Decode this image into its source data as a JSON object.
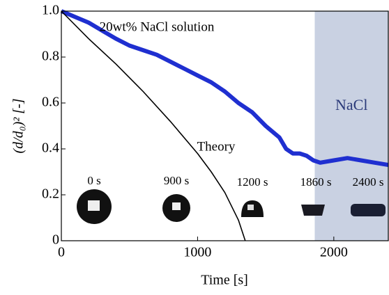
{
  "chart_data": {
    "type": "line",
    "xlabel": "Time [s]",
    "ylabel": "(d/d₀)² [-]",
    "xlim": [
      0,
      2400
    ],
    "ylim": [
      0,
      1
    ],
    "xticks": [
      0,
      1000,
      2000
    ],
    "yticks": [
      0,
      0.2,
      0.4,
      0.6,
      0.8,
      {
        "value": 1,
        "label": "1.0"
      }
    ],
    "shaded_region": {
      "range": [
        1860,
        2400
      ],
      "label": "NaCl",
      "color": "#c9d1e2"
    },
    "series": [
      {
        "color": "#1f2fd0",
        "x": [
          0,
          100,
          200,
          300,
          400,
          500,
          600,
          700,
          800,
          900,
          1000,
          1100,
          1200,
          1300,
          1400,
          1500,
          1600,
          1650,
          1700,
          1750,
          1800,
          1850,
          1900,
          2000,
          2100,
          2200,
          2300,
          2400
        ],
        "values": [
          1.0,
          0.975,
          0.95,
          0.915,
          0.88,
          0.85,
          0.83,
          0.81,
          0.78,
          0.75,
          0.72,
          0.69,
          0.65,
          0.6,
          0.56,
          0.5,
          0.45,
          0.4,
          0.38,
          0.38,
          0.37,
          0.35,
          0.34,
          0.35,
          0.36,
          0.35,
          0.34,
          0.33
        ]
      },
      {
        "color": "#000000",
        "x": [
          0,
          200,
          400,
          600,
          800,
          1000,
          1100,
          1200,
          1300,
          1350
        ],
        "values": [
          1.0,
          0.88,
          0.77,
          0.65,
          0.52,
          0.38,
          0.3,
          0.21,
          0.09,
          0
        ]
      }
    ],
    "annotations": [
      "20wt% NaCl solution",
      "Theory",
      "0 s",
      "900 s",
      "1200 s",
      "1860 s",
      "2400 s"
    ]
  }
}
